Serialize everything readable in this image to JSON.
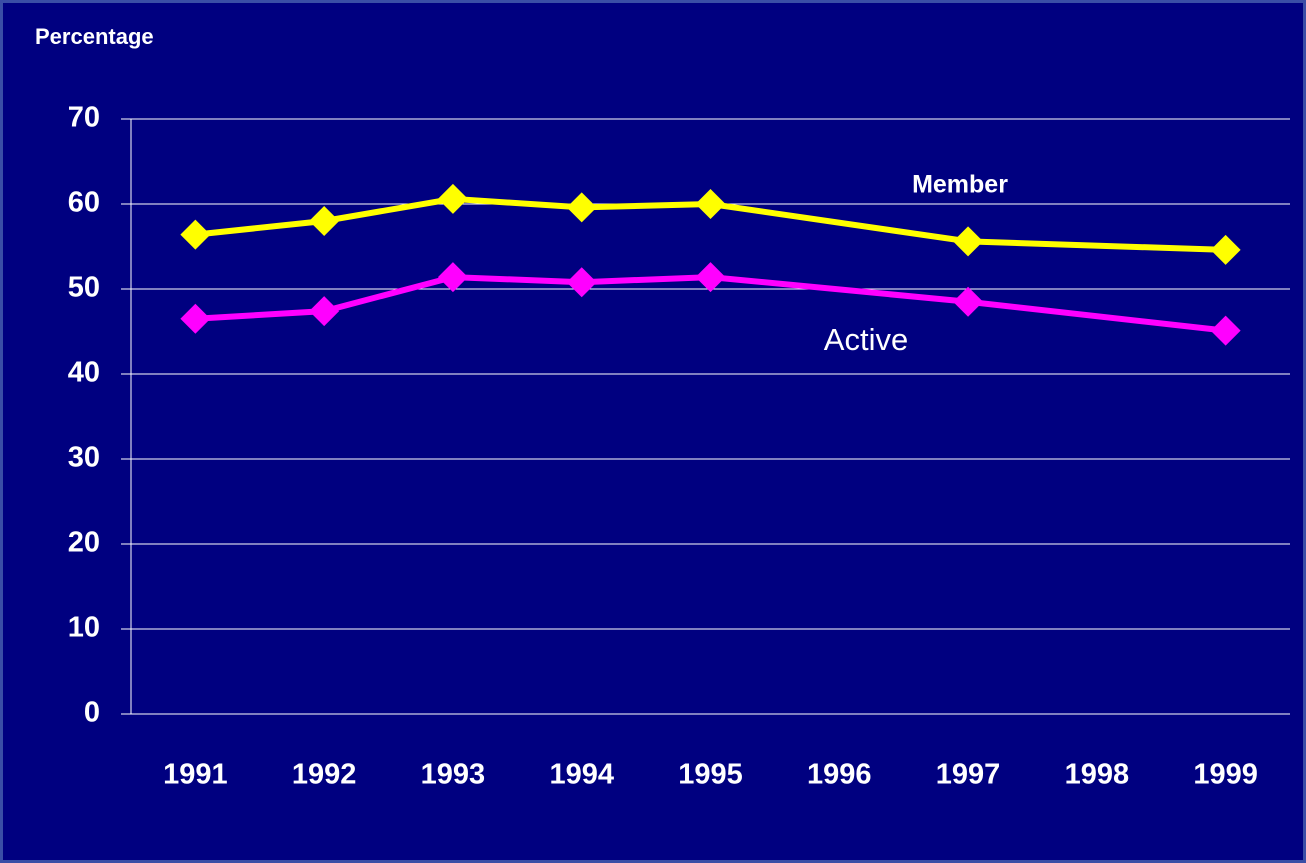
{
  "chart_data": {
    "type": "line",
    "y_label": "Percentage",
    "x": [
      1991,
      1992,
      1993,
      1994,
      1995,
      1997,
      1999
    ],
    "series": [
      {
        "name": "Member",
        "color": "#ffff00",
        "values": [
          56.4,
          58,
          60.6,
          59.6,
          60,
          55.6,
          54.6
        ]
      },
      {
        "name": "Active",
        "color": "#ff00ff",
        "values": [
          46.5,
          47.4,
          51.4,
          50.8,
          51.4,
          48.5,
          45.1
        ]
      }
    ],
    "xlim": [
      1990.5,
      1999.5
    ],
    "xticks": [
      1991,
      1992,
      1993,
      1994,
      1995,
      1996,
      1997,
      1998,
      1999
    ],
    "ylim": [
      0,
      70
    ],
    "yticks": [
      0,
      10,
      20,
      30,
      40,
      50,
      60,
      70
    ],
    "grid": true
  }
}
